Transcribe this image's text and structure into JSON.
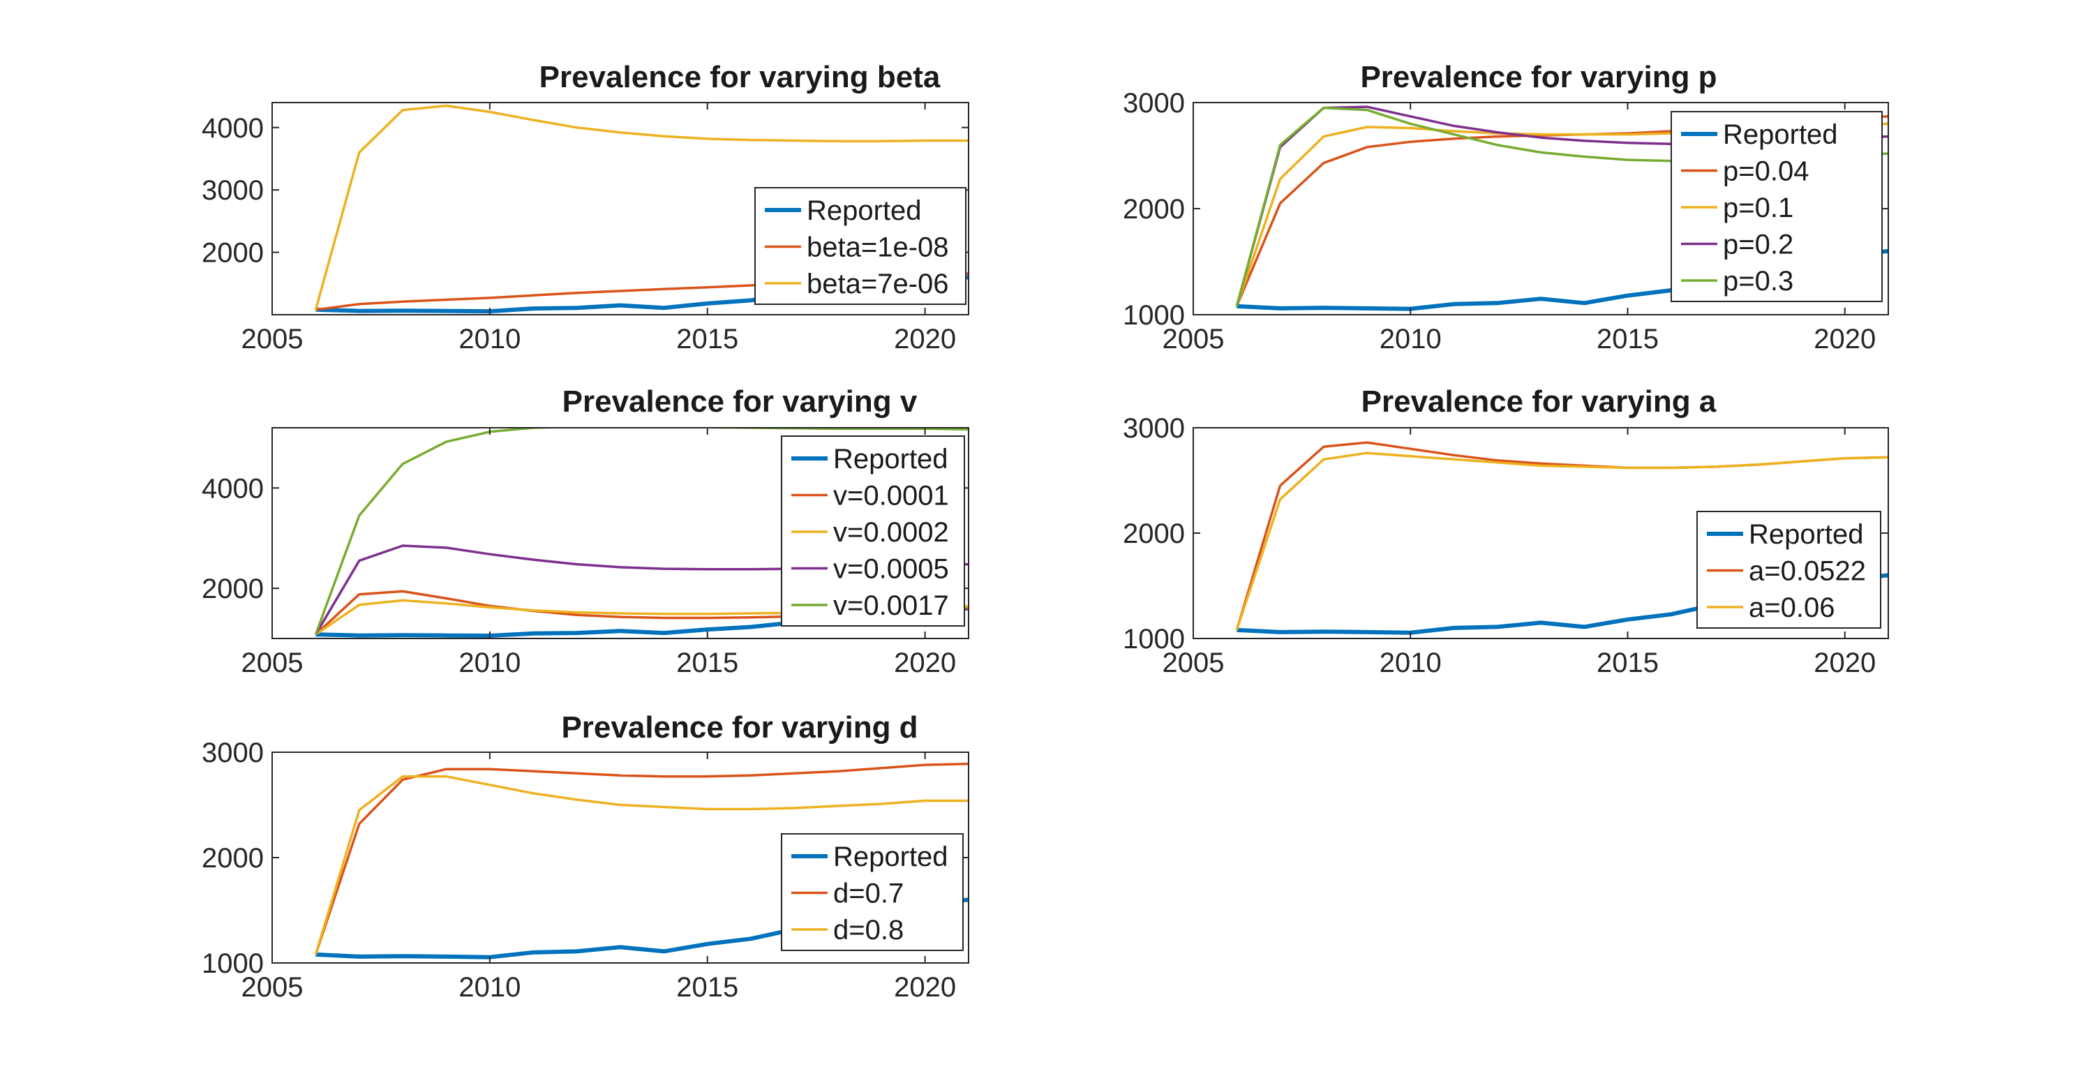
{
  "figure": {
    "background": "#ffffff"
  },
  "chart_data": [
    {
      "type": "line",
      "title": "Prevalence for varying beta",
      "xlabel": "",
      "ylabel": "",
      "xlim": [
        2005,
        2021
      ],
      "ylim": [
        1000,
        4400
      ],
      "xticks": [
        2005,
        2010,
        2015,
        2020
      ],
      "xtick_labels": [
        "2005",
        "2010",
        "2015",
        "2020"
      ],
      "yticks": [
        2000,
        3000,
        4000
      ],
      "ytick_labels": [
        "2000",
        "3000",
        "4000"
      ],
      "grid": false,
      "legend_position": "bottom-right",
      "x": [
        2006,
        2007,
        2008,
        2009,
        2010,
        2011,
        2012,
        2013,
        2014,
        2015,
        2016,
        2017,
        2018,
        2019,
        2020,
        2021
      ],
      "series": [
        {
          "name": "Reported",
          "color": "#0072BD",
          "width": "thick",
          "values": [
            1080,
            1060,
            1065,
            1060,
            1055,
            1100,
            1110,
            1150,
            1110,
            1180,
            1230,
            1320,
            1390,
            1450,
            1560,
            1600
          ]
        },
        {
          "name": "beta=1e-08",
          "color": "#D95319",
          "width": "normal",
          "values": [
            1080,
            1170,
            1210,
            1240,
            1270,
            1310,
            1350,
            1380,
            1410,
            1440,
            1470,
            1510,
            1550,
            1590,
            1630,
            1660
          ]
        },
        {
          "name": "beta=7e-06",
          "color": "#EDB120",
          "width": "normal",
          "values": [
            1080,
            3600,
            4280,
            4350,
            4250,
            4120,
            4000,
            3920,
            3860,
            3820,
            3800,
            3790,
            3780,
            3780,
            3790,
            3790
          ]
        }
      ]
    },
    {
      "type": "line",
      "title": "Prevalence for varying p",
      "xlabel": "",
      "ylabel": "",
      "xlim": [
        2005,
        2021
      ],
      "ylim": [
        1000,
        3000
      ],
      "xticks": [
        2005,
        2010,
        2015,
        2020
      ],
      "xtick_labels": [
        "2005",
        "2010",
        "2015",
        "2020"
      ],
      "yticks": [
        1000,
        2000,
        3000
      ],
      "ytick_labels": [
        "1000",
        "2000",
        "3000"
      ],
      "grid": false,
      "legend_position": "top-right",
      "x": [
        2006,
        2007,
        2008,
        2009,
        2010,
        2011,
        2012,
        2013,
        2014,
        2015,
        2016,
        2017,
        2018,
        2019,
        2020,
        2021
      ],
      "series": [
        {
          "name": "Reported",
          "color": "#0072BD",
          "width": "thick",
          "values": [
            1080,
            1060,
            1065,
            1060,
            1055,
            1100,
            1110,
            1150,
            1110,
            1180,
            1230,
            1320,
            1390,
            1450,
            1560,
            1600
          ]
        },
        {
          "name": "p=0.04",
          "color": "#D95319",
          "width": "normal",
          "values": [
            1080,
            2050,
            2430,
            2580,
            2630,
            2660,
            2680,
            2690,
            2700,
            2710,
            2730,
            2760,
            2790,
            2820,
            2850,
            2870
          ]
        },
        {
          "name": "p=0.1",
          "color": "#EDB120",
          "width": "normal",
          "values": [
            1080,
            2280,
            2680,
            2770,
            2760,
            2730,
            2710,
            2700,
            2700,
            2700,
            2710,
            2720,
            2740,
            2760,
            2780,
            2800
          ]
        },
        {
          "name": "p=0.2",
          "color": "#7E2F8E",
          "width": "normal",
          "values": [
            1080,
            2580,
            2950,
            2960,
            2870,
            2780,
            2720,
            2670,
            2640,
            2620,
            2610,
            2620,
            2630,
            2650,
            2670,
            2680
          ]
        },
        {
          "name": "p=0.3",
          "color": "#77AC30",
          "width": "normal",
          "values": [
            1080,
            2600,
            2950,
            2930,
            2800,
            2700,
            2600,
            2530,
            2490,
            2460,
            2450,
            2450,
            2460,
            2480,
            2500,
            2520
          ]
        }
      ]
    },
    {
      "type": "line",
      "title": "Prevalence for varying v",
      "xlabel": "",
      "ylabel": "",
      "xlim": [
        2005,
        2021
      ],
      "ylim": [
        1000,
        5200
      ],
      "xticks": [
        2005,
        2010,
        2015,
        2020
      ],
      "xtick_labels": [
        "2005",
        "2010",
        "2015",
        "2020"
      ],
      "yticks": [
        2000,
        4000
      ],
      "ytick_labels": [
        "2000",
        "4000"
      ],
      "grid": false,
      "legend_position": "right",
      "x": [
        2006,
        2007,
        2008,
        2009,
        2010,
        2011,
        2012,
        2013,
        2014,
        2015,
        2016,
        2017,
        2018,
        2019,
        2020,
        2021
      ],
      "series": [
        {
          "name": "Reported",
          "color": "#0072BD",
          "width": "thick",
          "values": [
            1080,
            1060,
            1065,
            1060,
            1055,
            1100,
            1110,
            1150,
            1110,
            1180,
            1230,
            1320,
            1390,
            1450,
            1560,
            1600
          ]
        },
        {
          "name": "v=0.0001",
          "color": "#D95319",
          "width": "normal",
          "values": [
            1080,
            1880,
            1940,
            1800,
            1650,
            1550,
            1470,
            1430,
            1410,
            1410,
            1420,
            1440,
            1470,
            1510,
            1560,
            1600
          ]
        },
        {
          "name": "v=0.0002",
          "color": "#EDB120",
          "width": "normal",
          "values": [
            1080,
            1670,
            1760,
            1700,
            1620,
            1560,
            1520,
            1500,
            1490,
            1490,
            1500,
            1510,
            1530,
            1560,
            1600,
            1640
          ]
        },
        {
          "name": "v=0.0005",
          "color": "#7E2F8E",
          "width": "normal",
          "values": [
            1080,
            2550,
            2850,
            2810,
            2680,
            2570,
            2480,
            2420,
            2390,
            2380,
            2380,
            2390,
            2410,
            2430,
            2460,
            2480
          ]
        },
        {
          "name": "v=0.0017",
          "color": "#77AC30",
          "width": "normal",
          "values": [
            1080,
            3450,
            4480,
            4920,
            5120,
            5200,
            5220,
            5230,
            5220,
            5210,
            5200,
            5190,
            5180,
            5180,
            5180,
            5170
          ]
        }
      ]
    },
    {
      "type": "line",
      "title": "Prevalence for varying a",
      "xlabel": "",
      "ylabel": "",
      "xlim": [
        2005,
        2021
      ],
      "ylim": [
        1000,
        3000
      ],
      "xticks": [
        2005,
        2010,
        2015,
        2020
      ],
      "xtick_labels": [
        "2005",
        "2010",
        "2015",
        "2020"
      ],
      "yticks": [
        1000,
        2000,
        3000
      ],
      "ytick_labels": [
        "1000",
        "2000",
        "3000"
      ],
      "grid": false,
      "legend_position": "bottom-right",
      "x": [
        2006,
        2007,
        2008,
        2009,
        2010,
        2011,
        2012,
        2013,
        2014,
        2015,
        2016,
        2017,
        2018,
        2019,
        2020,
        2021
      ],
      "series": [
        {
          "name": "Reported",
          "color": "#0072BD",
          "width": "thick",
          "values": [
            1080,
            1060,
            1065,
            1060,
            1055,
            1100,
            1110,
            1150,
            1110,
            1180,
            1230,
            1320,
            1390,
            1450,
            1560,
            1600
          ]
        },
        {
          "name": "a=0.0522",
          "color": "#D95319",
          "width": "normal",
          "values": [
            1080,
            2450,
            2820,
            2860,
            2800,
            2740,
            2690,
            2660,
            2640,
            2620,
            2620,
            2630,
            2650,
            2680,
            2710,
            2720
          ]
        },
        {
          "name": "a=0.06",
          "color": "#EDB120",
          "width": "normal",
          "values": [
            1080,
            2320,
            2700,
            2760,
            2730,
            2700,
            2670,
            2640,
            2630,
            2620,
            2620,
            2630,
            2650,
            2680,
            2710,
            2720
          ]
        }
      ]
    },
    {
      "type": "line",
      "title": "Prevalence for varying d",
      "xlabel": "",
      "ylabel": "",
      "xlim": [
        2005,
        2021
      ],
      "ylim": [
        1000,
        3000
      ],
      "xticks": [
        2005,
        2010,
        2015,
        2020
      ],
      "xtick_labels": [
        "2005",
        "2010",
        "2015",
        "2020"
      ],
      "yticks": [
        1000,
        2000,
        3000
      ],
      "ytick_labels": [
        "1000",
        "2000",
        "3000"
      ],
      "grid": false,
      "legend_position": "bottom-right",
      "x": [
        2006,
        2007,
        2008,
        2009,
        2010,
        2011,
        2012,
        2013,
        2014,
        2015,
        2016,
        2017,
        2018,
        2019,
        2020,
        2021
      ],
      "series": [
        {
          "name": "Reported",
          "color": "#0072BD",
          "width": "thick",
          "values": [
            1080,
            1060,
            1065,
            1060,
            1055,
            1100,
            1110,
            1150,
            1110,
            1180,
            1230,
            1320,
            1390,
            1450,
            1560,
            1600
          ]
        },
        {
          "name": "d=0.7",
          "color": "#D95319",
          "width": "normal",
          "values": [
            1080,
            2320,
            2740,
            2840,
            2840,
            2820,
            2800,
            2780,
            2770,
            2770,
            2780,
            2800,
            2820,
            2850,
            2880,
            2890
          ]
        },
        {
          "name": "d=0.8",
          "color": "#EDB120",
          "width": "normal",
          "values": [
            1080,
            2450,
            2770,
            2770,
            2690,
            2610,
            2550,
            2500,
            2480,
            2460,
            2460,
            2470,
            2490,
            2510,
            2540,
            2540
          ]
        }
      ]
    }
  ]
}
